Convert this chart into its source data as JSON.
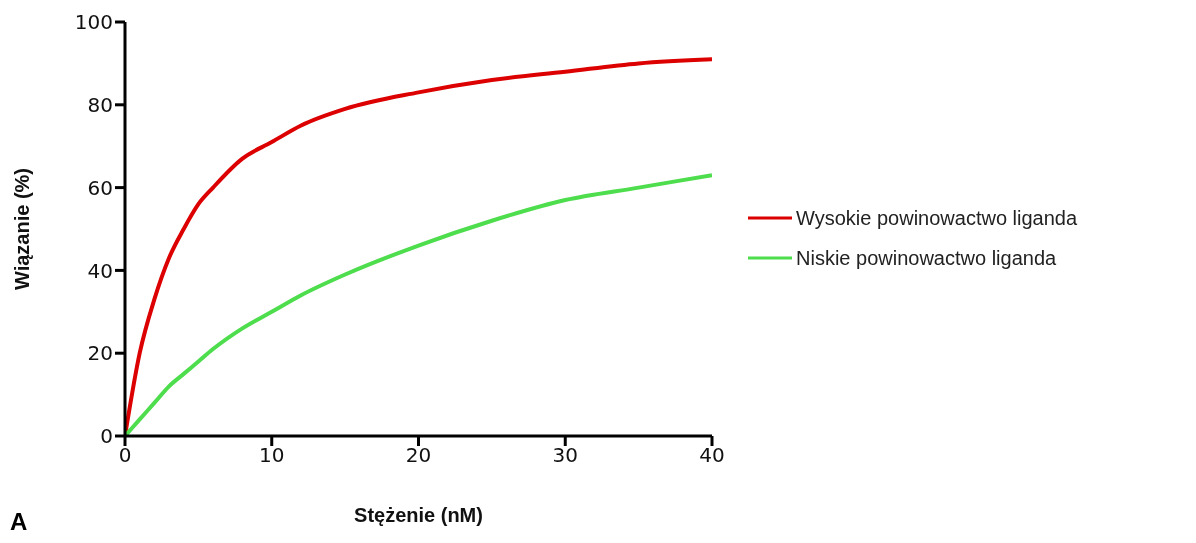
{
  "chart_data": {
    "type": "line",
    "xlabel": "Stężenie (nM)",
    "ylabel": "Wiązanie (%)",
    "annotations": [
      "A"
    ],
    "x": [
      0,
      1,
      2,
      3,
      4,
      5,
      6,
      8,
      10,
      12,
      15,
      20,
      25,
      30,
      35,
      40
    ],
    "series": [
      {
        "name": "Wysokie powinowactwo liganda",
        "color": "#dd0000",
        "values": [
          0,
          20,
          33,
          43,
          50,
          56,
          60,
          67,
          71,
          75,
          79,
          83,
          86,
          88,
          90,
          91
        ]
      },
      {
        "name": "Niskie powinowactwo liganda",
        "color": "#4ddd4d",
        "values": [
          0,
          4,
          8,
          12,
          15,
          18,
          21,
          26,
          30,
          34,
          39,
          46,
          52,
          57,
          60,
          63
        ]
      }
    ],
    "xlim": [
      0,
      40
    ],
    "xticks": [
      0,
      10,
      20,
      30,
      40
    ],
    "ylim": [
      0,
      100
    ],
    "yticks": [
      0,
      20,
      40,
      60,
      80,
      100
    ],
    "grid": false,
    "legend": "right",
    "marker": "none",
    "line_style": "solid"
  }
}
